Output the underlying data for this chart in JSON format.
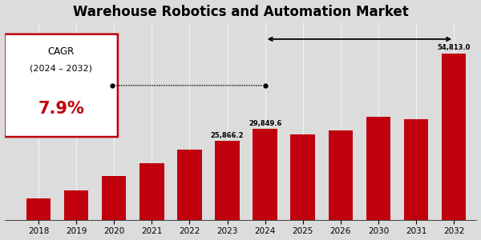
{
  "title": "Warehouse Robotics and Automation Market",
  "categories": [
    "2018",
    "2019",
    "2020",
    "2021",
    "2022",
    "2023",
    "2024",
    "2025",
    "2026",
    "2030",
    "2031",
    "2032"
  ],
  "values": [
    7000,
    9800,
    14500,
    18500,
    23000,
    25866.2,
    29849.6,
    28000,
    29500,
    34000,
    33000,
    54813.0
  ],
  "bar_color": "#C0000C",
  "bg_color": "#DCDCDC",
  "title_fontsize": 12,
  "ylabel_fontsize": 8,
  "cagr_text1": "CAGR",
  "cagr_text2": "(2024 – 2032)",
  "cagr_value": "7.9%",
  "bar_labels": [
    "",
    "",
    "",
    "",
    "",
    "25,866.2",
    "29,849.6",
    "",
    "",
    "",
    "",
    "54,813.0"
  ],
  "ylim_max": 65000
}
